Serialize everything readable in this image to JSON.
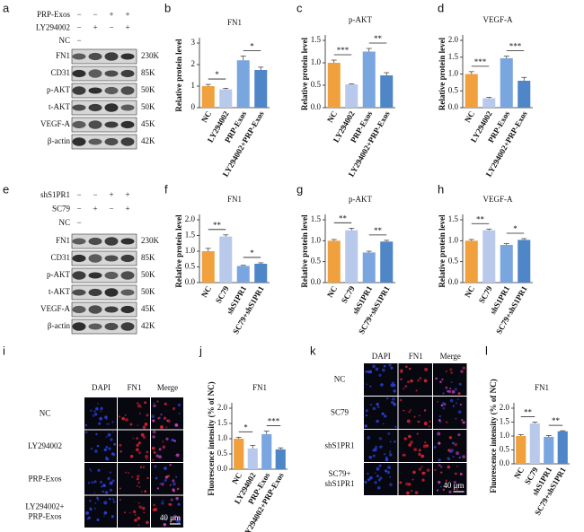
{
  "panel_labels": [
    "a",
    "b",
    "c",
    "d",
    "e",
    "f",
    "g",
    "h",
    "i",
    "j",
    "k",
    "l"
  ],
  "blots": [
    {
      "conditions": [
        {
          "name": "PRP-Exos",
          "signs": [
            "−",
            "−",
            "+",
            "+"
          ]
        },
        {
          "name": "LY294002",
          "signs": [
            "−",
            "+",
            "−",
            "+"
          ]
        },
        {
          "name": "NC",
          "signs": [
            "−"
          ]
        }
      ],
      "bands": [
        {
          "name": "FN1",
          "size": "230K"
        },
        {
          "name": "CD31",
          "size": "85K"
        },
        {
          "name": "p-AKT",
          "size": "50K"
        },
        {
          "name": "t-AKT",
          "size": "50K"
        },
        {
          "name": "VEGF-A",
          "size": "45K"
        },
        {
          "name": "β-actin",
          "size": "42K"
        }
      ]
    },
    {
      "conditions": [
        {
          "name": "shS1PR1",
          "signs": [
            "−",
            "−",
            "+",
            "+"
          ]
        },
        {
          "name": "SC79",
          "signs": [
            "−",
            "+",
            "−",
            "+"
          ]
        },
        {
          "name": "NC",
          "signs": [
            "−"
          ]
        }
      ],
      "bands": [
        {
          "name": "FN1",
          "size": "230K"
        },
        {
          "name": "CD31",
          "size": "85K"
        },
        {
          "name": "p-AKT",
          "size": "50K"
        },
        {
          "name": "t-AKT",
          "size": "50K"
        },
        {
          "name": "VEGF-A",
          "size": "45K"
        },
        {
          "name": "β-actin",
          "size": "42K"
        }
      ]
    }
  ],
  "chart_data": [
    {
      "type": "bar",
      "title": "FN1",
      "y_label": "Relative protein level",
      "categories": [
        "NC",
        "LY294002",
        "PRP-Exos",
        "LY294002+PRP-Exos"
      ],
      "values": [
        1.0,
        0.85,
        2.2,
        1.75
      ],
      "errors": [
        0.08,
        0.05,
        0.2,
        0.13
      ],
      "colors": [
        "#f0a03c",
        "#b9c9ec",
        "#7aa6e0",
        "#4f86c8"
      ],
      "ylim": [
        0,
        3
      ],
      "yticks": [
        0,
        1,
        2,
        3
      ],
      "comparisons": [
        {
          "groups": [
            "NC",
            "LY294002"
          ],
          "label": "*"
        },
        {
          "groups": [
            "PRP-Exos",
            "LY294002+PRP-Exos"
          ],
          "label": "*"
        }
      ]
    },
    {
      "type": "bar",
      "title": "p-AKT",
      "y_label": "Relative protein level",
      "categories": [
        "NC",
        "LY294002",
        "PRP-Exos",
        "LY294002+PRP-Exos"
      ],
      "values": [
        1.0,
        0.52,
        1.25,
        0.72
      ],
      "errors": [
        0.06,
        0.01,
        0.07,
        0.06
      ],
      "colors": [
        "#f0a03c",
        "#b9c9ec",
        "#7aa6e0",
        "#4f86c8"
      ],
      "ylim": [
        0,
        1.5
      ],
      "yticks": [
        {
          "value": 0,
          "label": "0.0"
        },
        0.5,
        {
          "value": 1,
          "label": "1.0"
        },
        1.5
      ],
      "comparisons": [
        {
          "groups": [
            "NC",
            "LY294002"
          ],
          "label": "***"
        },
        {
          "groups": [
            "PRP-Exos",
            "LY294002+PRP-Exos"
          ],
          "label": "**"
        }
      ]
    },
    {
      "type": "bar",
      "title": "VEGF-A",
      "y_label": "Relative protein level",
      "categories": [
        "NC",
        "LY294002",
        "PRP-Exos",
        "LY294002+PRP-Exos"
      ],
      "values": [
        1.0,
        0.28,
        1.47,
        0.8
      ],
      "errors": [
        0.07,
        0.03,
        0.06,
        0.1
      ],
      "colors": [
        "#f0a03c",
        "#b9c9ec",
        "#7aa6e0",
        "#4f86c8"
      ],
      "ylim": [
        0,
        2
      ],
      "yticks": [
        {
          "value": 0,
          "label": "0.0"
        },
        0.5,
        {
          "value": 1,
          "label": "1.0"
        },
        1.5,
        {
          "value": 2,
          "label": "2.0"
        }
      ],
      "comparisons": [
        {
          "groups": [
            "NC",
            "LY294002"
          ],
          "label": "***"
        },
        {
          "groups": [
            "PRP-Exos",
            "LY294002+PRP-Exos"
          ],
          "label": "***"
        }
      ]
    },
    {
      "type": "bar",
      "title": "FN1",
      "y_label": "Relative protein level",
      "categories": [
        "NC",
        "SC79",
        "shS1PR1",
        "SC79+shS1PR1"
      ],
      "values": [
        1.0,
        1.47,
        0.53,
        0.6
      ],
      "errors": [
        0.09,
        0.05,
        0.02,
        0.03
      ],
      "colors": [
        "#f0a03c",
        "#b9c9ec",
        "#7aa6e0",
        "#4f86c8"
      ],
      "ylim": [
        0,
        2
      ],
      "yticks": [
        {
          "value": 0,
          "label": "0.0"
        },
        0.5,
        {
          "value": 1,
          "label": "1.0"
        },
        1.5,
        {
          "value": 2,
          "label": "2.0"
        }
      ],
      "comparisons": [
        {
          "groups": [
            "NC",
            "SC79"
          ],
          "label": "**"
        },
        {
          "groups": [
            "shS1PR1",
            "SC79+shS1PR1"
          ],
          "label": "*"
        }
      ]
    },
    {
      "type": "bar",
      "title": "p-AKT",
      "y_label": "Relative protein level",
      "categories": [
        "NC",
        "SC79",
        "shS1PR1",
        "SC79+shS1PR1"
      ],
      "values": [
        1.0,
        1.25,
        0.72,
        0.98
      ],
      "errors": [
        0.03,
        0.05,
        0.03,
        0.03
      ],
      "colors": [
        "#f0a03c",
        "#b9c9ec",
        "#7aa6e0",
        "#4f86c8"
      ],
      "ylim": [
        0,
        1.5
      ],
      "yticks": [
        {
          "value": 0,
          "label": "0.0"
        },
        0.5,
        {
          "value": 1,
          "label": "1.0"
        },
        1.5
      ],
      "comparisons": [
        {
          "groups": [
            "NC",
            "SC79"
          ],
          "label": "**"
        },
        {
          "groups": [
            "shS1PR1",
            "SC79+shS1PR1"
          ],
          "label": "**"
        }
      ]
    },
    {
      "type": "bar",
      "title": "VEGF-A",
      "y_label": "Relative protein level",
      "categories": [
        "NC",
        "SC79",
        "shS1PR1",
        "SC79+shS1PR1"
      ],
      "values": [
        1.0,
        1.25,
        0.9,
        1.02
      ],
      "errors": [
        0.03,
        0.03,
        0.03,
        0.03
      ],
      "colors": [
        "#f0a03c",
        "#b9c9ec",
        "#7aa6e0",
        "#4f86c8"
      ],
      "ylim": [
        0,
        1.5
      ],
      "yticks": [
        {
          "value": 0,
          "label": "0.0"
        },
        0.5,
        {
          "value": 1,
          "label": "1.0"
        },
        1.5
      ],
      "comparisons": [
        {
          "groups": [
            "NC",
            "SC79"
          ],
          "label": "**"
        },
        {
          "groups": [
            "shS1PR1",
            "SC79+shS1PR1"
          ],
          "label": "*"
        }
      ]
    },
    {
      "type": "bar",
      "title": "FN1",
      "y_label": "Fluorescence intensity (% of NC)",
      "categories": [
        "NC",
        "LY294002",
        "PRP-Exos",
        "LY294002+PRP-Exos"
      ],
      "values": [
        1.0,
        0.68,
        1.15,
        0.65
      ],
      "errors": [
        0.05,
        0.1,
        0.1,
        0.05
      ],
      "colors": [
        "#f0a03c",
        "#b9c9ec",
        "#7aa6e0",
        "#4f86c8"
      ],
      "ylim": [
        0,
        2
      ],
      "yticks": [
        {
          "value": 0,
          "label": "0.0"
        },
        0.5,
        {
          "value": 1,
          "label": "1.0"
        },
        1.5,
        {
          "value": 2,
          "label": "2.0"
        }
      ],
      "comparisons": [
        {
          "groups": [
            "NC",
            "LY294002"
          ],
          "label": "*"
        },
        {
          "groups": [
            "PRP-Exos",
            "LY294002+PRP-Exos"
          ],
          "label": "***"
        }
      ]
    },
    {
      "type": "bar",
      "title": "FN1",
      "y_label": "Fluorescence intensity (% of NC)",
      "categories": [
        "NC",
        "SC79",
        "shS1PR1",
        "SC79+shS1PR1"
      ],
      "values": [
        1.0,
        1.45,
        0.97,
        1.17
      ],
      "errors": [
        0.05,
        0.05,
        0.05,
        0.02
      ],
      "colors": [
        "#f0a03c",
        "#b9c9ec",
        "#7aa6e0",
        "#4f86c8"
      ],
      "ylim": [
        0,
        2
      ],
      "yticks": [
        {
          "value": 0,
          "label": "0.0"
        },
        0.5,
        {
          "value": 1,
          "label": "1.0"
        },
        1.5,
        {
          "value": 2,
          "label": "2.0"
        }
      ],
      "comparisons": [
        {
          "groups": [
            "NC",
            "SC79"
          ],
          "label": "**"
        },
        {
          "groups": [
            "shS1PR1",
            "SC79+shS1PR1"
          ],
          "label": "**"
        }
      ]
    }
  ],
  "images": [
    {
      "columns": [
        "DAPI",
        "FN1",
        "Merge"
      ],
      "rows": [
        [
          "NC"
        ],
        [
          "LY294002"
        ],
        [
          "PRP-Exos"
        ],
        [
          "LY294002+",
          "PRP-Exos"
        ]
      ],
      "scale_bar": "40 μm"
    },
    {
      "columns": [
        "DAPI",
        "FN1",
        "Merge"
      ],
      "rows": [
        [
          "NC"
        ],
        [
          "SC79"
        ],
        [
          "shS1PR1"
        ],
        [
          "SC79+",
          "shS1PR1"
        ]
      ],
      "scale_bar": "40 μm"
    }
  ]
}
